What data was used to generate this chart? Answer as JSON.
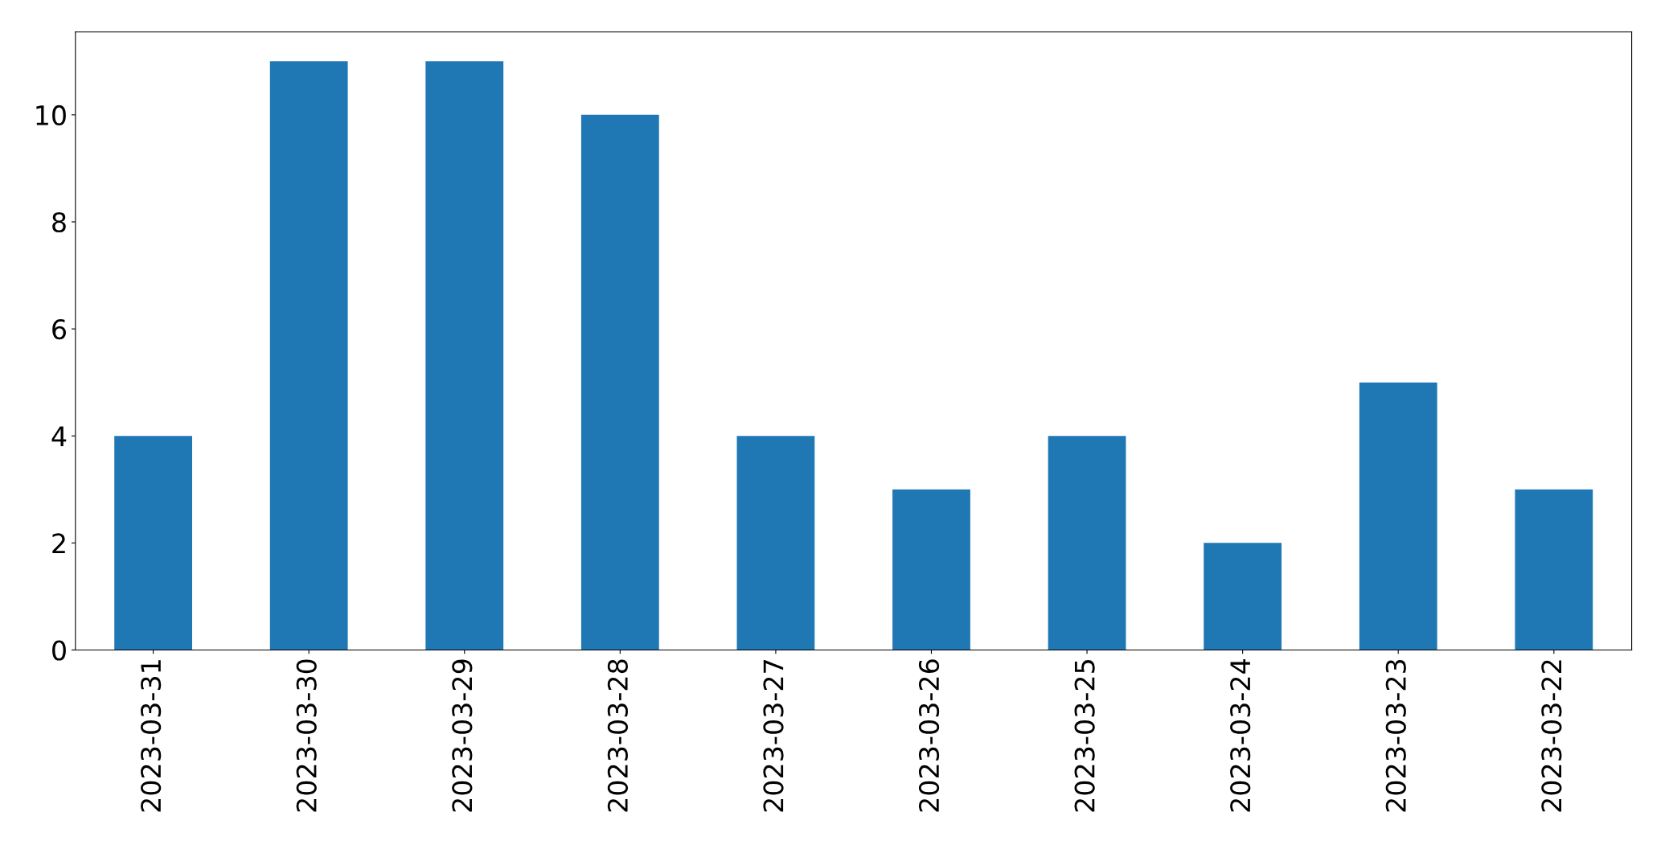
{
  "chart_data": {
    "type": "bar",
    "categories": [
      "2023-03-31",
      "2023-03-30",
      "2023-03-29",
      "2023-03-28",
      "2023-03-27",
      "2023-03-26",
      "2023-03-25",
      "2023-03-24",
      "2023-03-23",
      "2023-03-22"
    ],
    "values": [
      4,
      11,
      11,
      10,
      4,
      3,
      4,
      2,
      5,
      3
    ],
    "color": "#1f77b4",
    "ylim": [
      0,
      11.55
    ],
    "yticks": [
      0,
      2,
      4,
      6,
      8,
      10
    ],
    "grid": false,
    "legend": false
  }
}
